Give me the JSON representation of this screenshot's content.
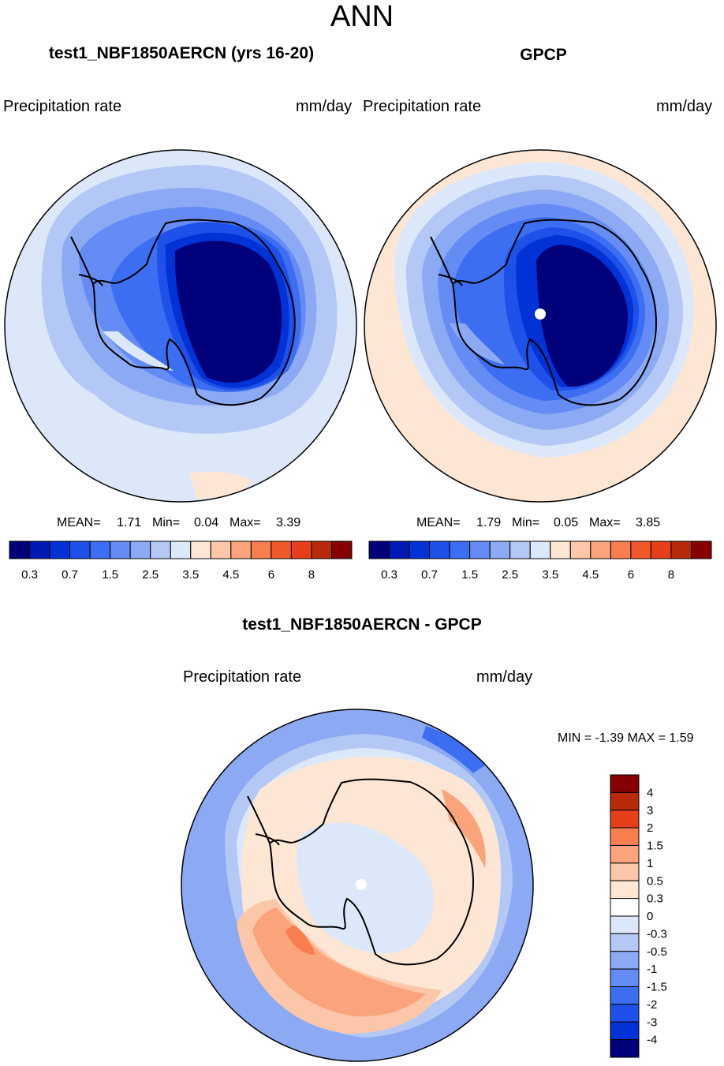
{
  "page_title": "ANN",
  "panels": [
    {
      "title": "test1_NBF1850AERCN (yrs 16-20)",
      "left_label": "Precipitation rate",
      "right_label": "mm/day",
      "mean_label": "MEAN=",
      "mean_value": "1.71",
      "min_label": "Min=",
      "min_value": "0.04",
      "max_label": "Max=",
      "max_value": "3.39"
    },
    {
      "title": "GPCP",
      "left_label": "Precipitation rate",
      "right_label": "mm/day",
      "mean_label": "MEAN=",
      "mean_value": "1.79",
      "min_label": "Min=",
      "min_value": "0.05",
      "max_label": "Max=",
      "max_value": "3.85"
    },
    {
      "title": "test1_NBF1850AERCN - GPCP",
      "left_label": "Precipitation rate",
      "right_label": "mm/day",
      "minmax_text": "MIN =  -1.39 MAX =   1.59"
    }
  ],
  "chart_data": [
    {
      "type": "heatmap",
      "title": "test1_NBF1850AERCN (yrs 16-20)",
      "variable": "Precipitation rate",
      "units": "mm/day",
      "projection": "south polar stereographic",
      "stats": {
        "mean": 1.71,
        "min": 0.04,
        "max": 3.39
      },
      "colorbar": {
        "orientation": "horizontal",
        "tick_labels": [
          "0.3",
          "0.7",
          "1.5",
          "2.5",
          "3.5",
          "4.5",
          "6",
          "8"
        ],
        "levels": [
          0.2,
          0.3,
          0.5,
          0.7,
          1,
          1.5,
          2,
          2.5,
          3,
          3.5,
          4,
          4.5,
          5,
          6,
          7,
          8
        ],
        "colors": [
          "#00007a",
          "#0019b5",
          "#0032d6",
          "#1e50ea",
          "#3c6ef2",
          "#648cf4",
          "#8caaf4",
          "#b4c8f6",
          "#dce8fa",
          "#fde6d4",
          "#fcc7a8",
          "#fba47c",
          "#f87e50",
          "#f0582a",
          "#e6401a",
          "#b82a0a",
          "#860000"
        ]
      }
    },
    {
      "type": "heatmap",
      "title": "GPCP",
      "variable": "Precipitation rate",
      "units": "mm/day",
      "projection": "south polar stereographic",
      "stats": {
        "mean": 1.79,
        "min": 0.05,
        "max": 3.85
      },
      "colorbar": {
        "orientation": "horizontal",
        "tick_labels": [
          "0.3",
          "0.7",
          "1.5",
          "2.5",
          "3.5",
          "4.5",
          "6",
          "8"
        ],
        "levels": [
          0.2,
          0.3,
          0.5,
          0.7,
          1,
          1.5,
          2,
          2.5,
          3,
          3.5,
          4,
          4.5,
          5,
          6,
          7,
          8
        ],
        "colors": [
          "#00007a",
          "#0019b5",
          "#0032d6",
          "#1e50ea",
          "#3c6ef2",
          "#648cf4",
          "#8caaf4",
          "#b4c8f6",
          "#dce8fa",
          "#fde6d4",
          "#fcc7a8",
          "#fba47c",
          "#f87e50",
          "#f0582a",
          "#e6401a",
          "#b82a0a",
          "#860000"
        ]
      }
    },
    {
      "type": "heatmap",
      "title": "test1_NBF1850AERCN - GPCP",
      "variable": "Precipitation rate",
      "units": "mm/day",
      "projection": "south polar stereographic",
      "stats": {
        "min": -1.39,
        "max": 1.59
      },
      "colorbar": {
        "orientation": "vertical",
        "tick_labels_top_to_bottom": [
          "4",
          "3",
          "2",
          "1.5",
          "1",
          "0.5",
          "0.3",
          "0",
          "-0.3",
          "-0.5",
          "-1",
          "-1.5",
          "-2",
          "-3",
          "-4"
        ],
        "colors_top_to_bottom": [
          "#860000",
          "#b82a0a",
          "#e6401a",
          "#f87e50",
          "#fba47c",
          "#fcc7a8",
          "#fde6d4",
          "#ffffff",
          "#dce8fa",
          "#b4c8f6",
          "#8caaf4",
          "#648cf4",
          "#3c6ef2",
          "#1e50ea",
          "#0032d6",
          "#00007a"
        ]
      }
    }
  ],
  "colors": {
    "border": "#000000",
    "ocean_light": "#dce8fa",
    "continent_dark": "#00007a",
    "pole_hole": "#ffffff"
  }
}
